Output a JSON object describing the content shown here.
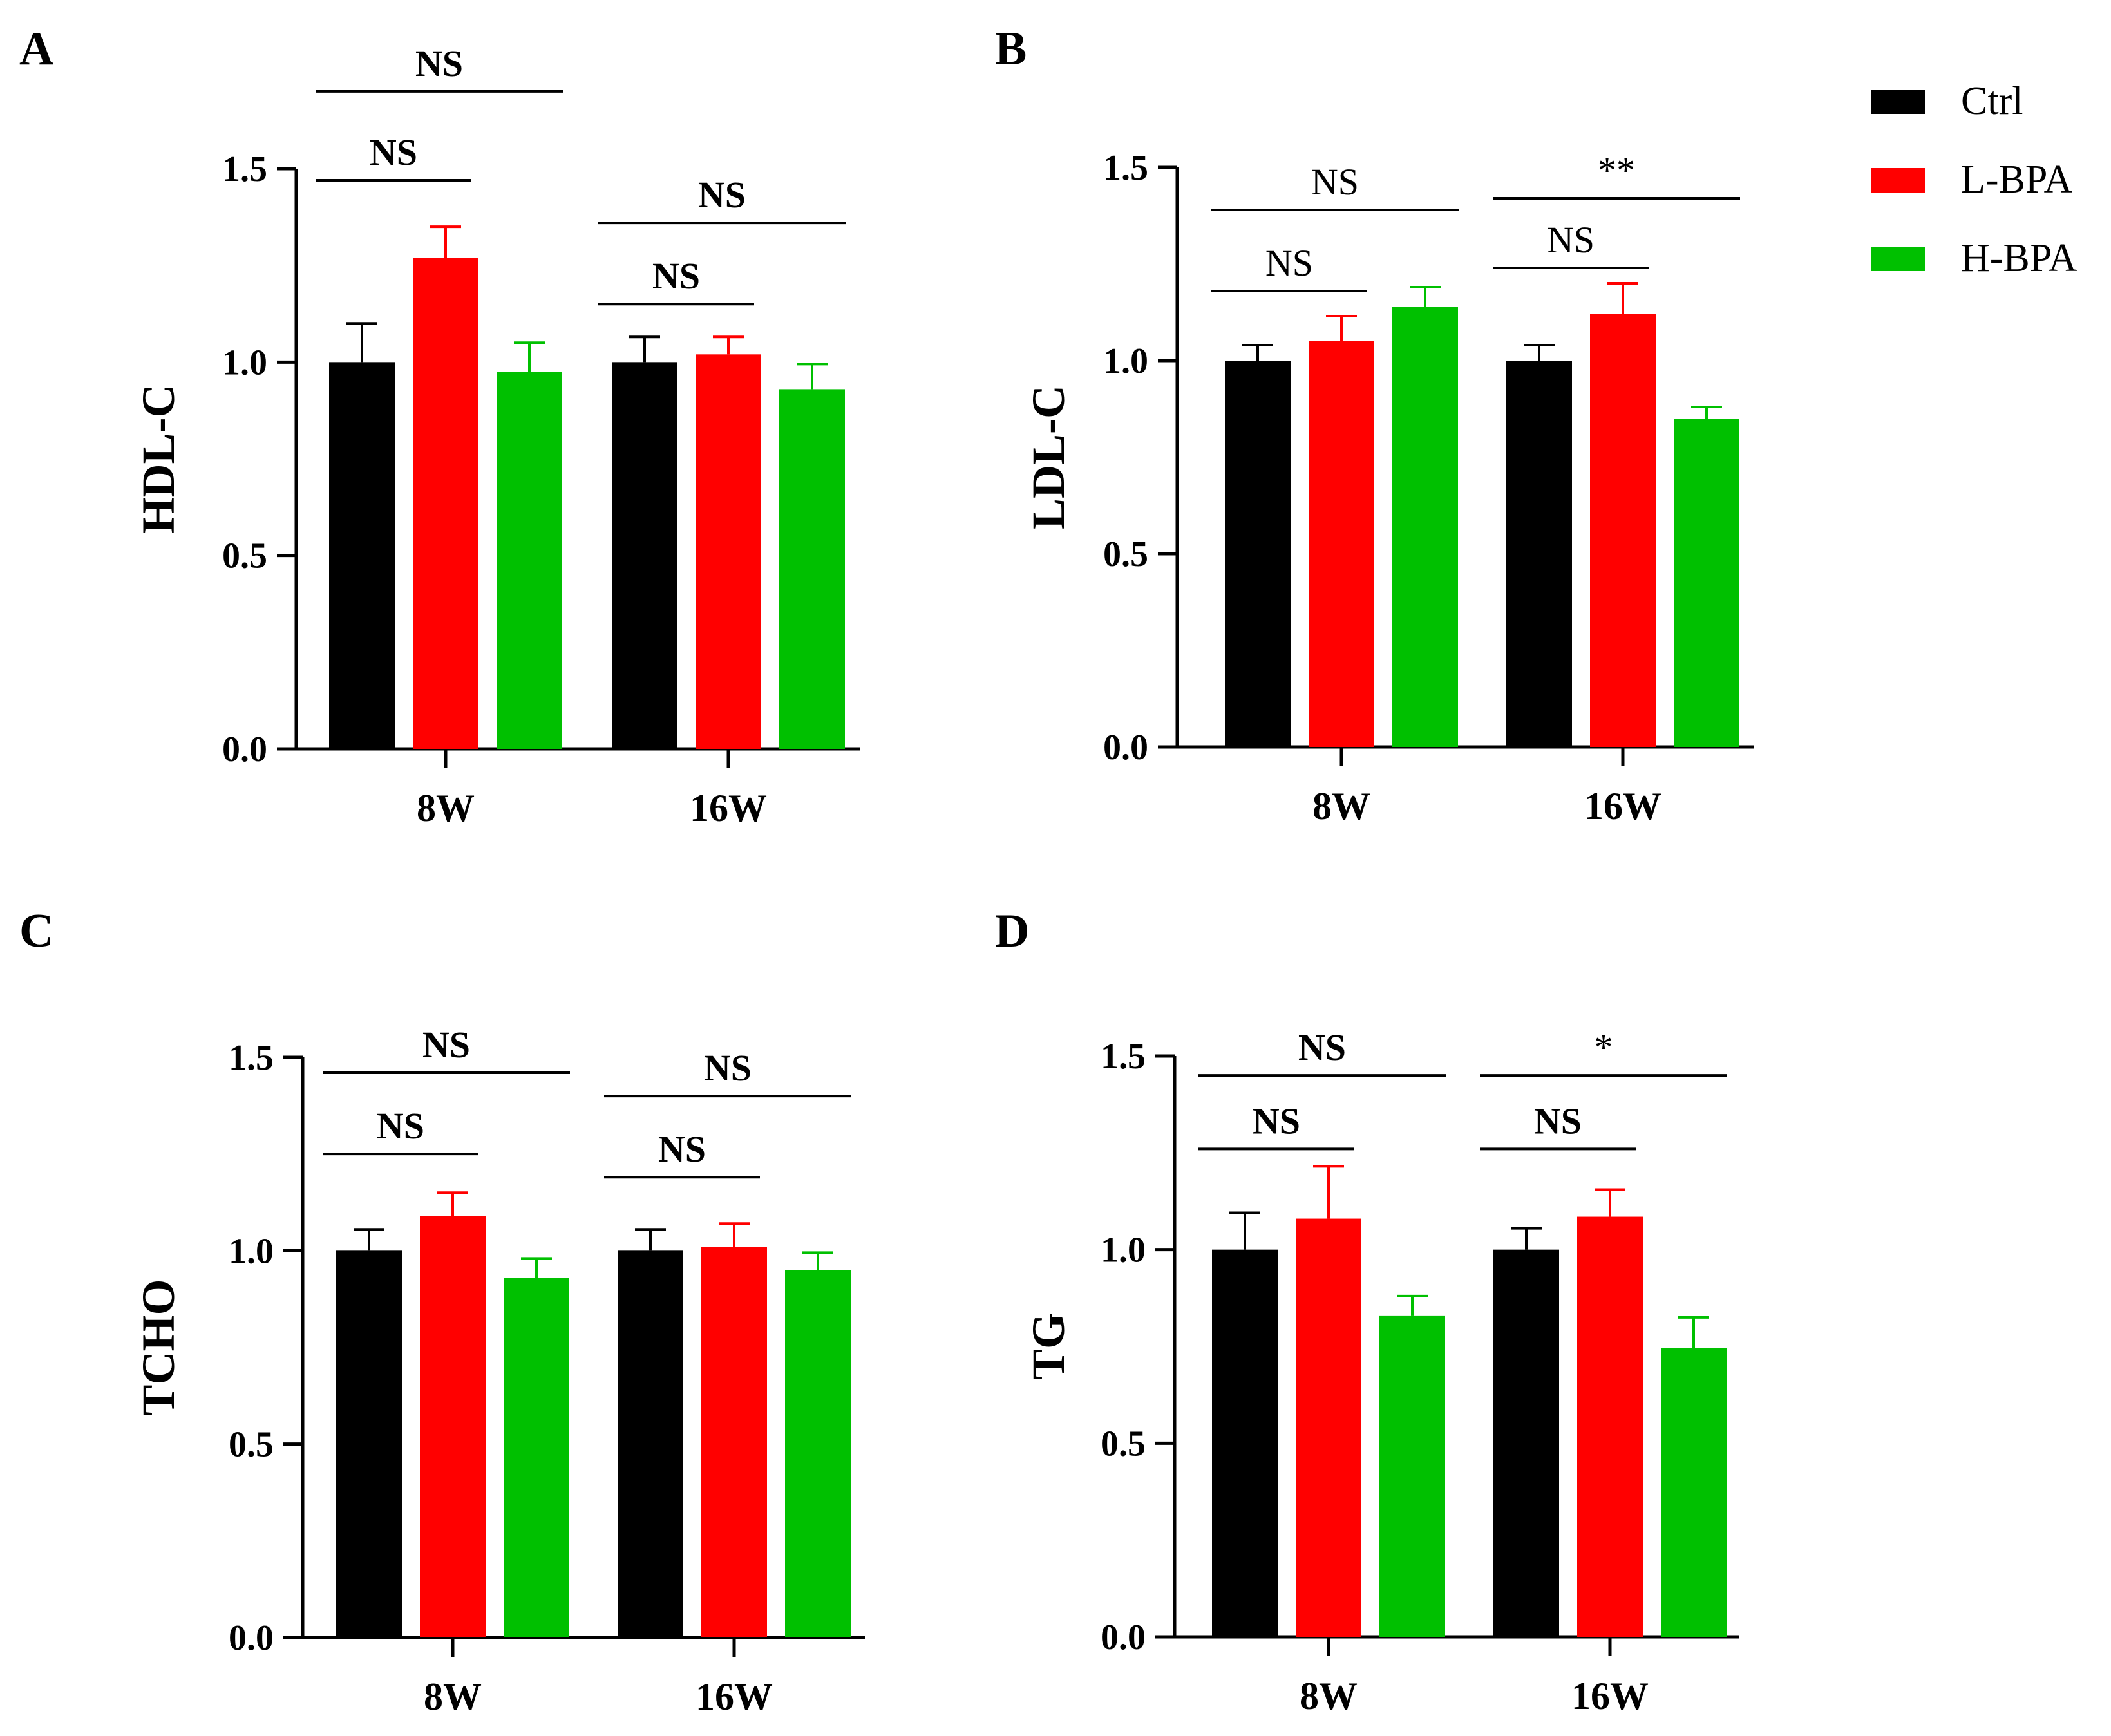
{
  "legend": [
    {
      "label": "Ctrl",
      "color": "#000000"
    },
    {
      "label": "L-BPA",
      "color": "#ff0000"
    },
    {
      "label": "H-BPA",
      "color": "#00c000"
    }
  ],
  "chart_data": [
    {
      "panel": "A",
      "type": "bar",
      "ylabel": "HDL-C",
      "ylim": [
        0,
        1.5
      ],
      "yticks": [
        "0.0",
        "0.5",
        "1.0",
        "1.5"
      ],
      "categories": [
        "8W",
        "16W"
      ],
      "series": [
        {
          "name": "Ctrl",
          "values": [
            1.0,
            1.0
          ],
          "errors": [
            0.1,
            0.065
          ]
        },
        {
          "name": "L-BPA",
          "values": [
            1.27,
            1.02
          ],
          "errors": [
            0.08,
            0.045
          ]
        },
        {
          "name": "H-BPA",
          "values": [
            0.975,
            0.93
          ],
          "errors": [
            0.075,
            0.065
          ]
        }
      ],
      "significance": [
        {
          "label": "NS",
          "group": 0,
          "from": 0,
          "to": 1,
          "level": 1.47,
          "bold": true
        },
        {
          "label": "NS",
          "group": 0,
          "from": 0,
          "to": 2,
          "level": 1.7,
          "bold": true
        },
        {
          "label": "NS",
          "group": 1,
          "from": 0,
          "to": 1,
          "level": 1.15,
          "bold": true
        },
        {
          "label": "NS",
          "group": 1,
          "from": 0,
          "to": 2,
          "level": 1.36,
          "bold": true
        }
      ]
    },
    {
      "panel": "B",
      "type": "bar",
      "ylabel": "LDL-C",
      "ylim": [
        0,
        1.5
      ],
      "yticks": [
        "0.0",
        "0.5",
        "1.0",
        "1.5"
      ],
      "categories": [
        "8W",
        "16W"
      ],
      "series": [
        {
          "name": "Ctrl",
          "values": [
            1.0,
            1.0
          ],
          "errors": [
            0.04,
            0.04
          ]
        },
        {
          "name": "L-BPA",
          "values": [
            1.05,
            1.12
          ],
          "errors": [
            0.065,
            0.08
          ]
        },
        {
          "name": "H-BPA",
          "values": [
            1.14,
            0.85
          ],
          "errors": [
            0.05,
            0.03
          ]
        }
      ],
      "significance": [
        {
          "label": "NS",
          "group": 0,
          "from": 0,
          "to": 1,
          "level": 1.18,
          "bold": false
        },
        {
          "label": "NS",
          "group": 0,
          "from": 0,
          "to": 2,
          "level": 1.39,
          "bold": false
        },
        {
          "label": "NS",
          "group": 1,
          "from": 0,
          "to": 1,
          "level": 1.24,
          "bold": false
        },
        {
          "label": "**",
          "group": 1,
          "from": 0,
          "to": 2,
          "level": 1.42,
          "bold": false
        }
      ]
    },
    {
      "panel": "C",
      "type": "bar",
      "ylabel": "TCHO",
      "ylim": [
        0,
        1.5
      ],
      "yticks": [
        "0.0",
        "0.5",
        "1.0",
        "1.5"
      ],
      "categories": [
        "8W",
        "16W"
      ],
      "series": [
        {
          "name": "Ctrl",
          "values": [
            1.0,
            1.0
          ],
          "errors": [
            0.055,
            0.055
          ]
        },
        {
          "name": "L-BPA",
          "values": [
            1.09,
            1.01
          ],
          "errors": [
            0.06,
            0.06
          ]
        },
        {
          "name": "H-BPA",
          "values": [
            0.93,
            0.95
          ],
          "errors": [
            0.05,
            0.045
          ]
        }
      ],
      "significance": [
        {
          "label": "NS",
          "group": 0,
          "from": 0,
          "to": 1,
          "level": 1.25,
          "bold": true
        },
        {
          "label": "NS",
          "group": 0,
          "from": 0,
          "to": 2,
          "level": 1.46,
          "bold": true
        },
        {
          "label": "NS",
          "group": 1,
          "from": 0,
          "to": 1,
          "level": 1.19,
          "bold": true
        },
        {
          "label": "NS",
          "group": 1,
          "from": 0,
          "to": 2,
          "level": 1.4,
          "bold": true
        }
      ]
    },
    {
      "panel": "D",
      "type": "bar",
      "ylabel": "TG",
      "ylim": [
        0,
        1.5
      ],
      "yticks": [
        "0.0",
        "0.5",
        "1.0",
        "1.5"
      ],
      "categories": [
        "8W",
        "16W"
      ],
      "series": [
        {
          "name": "Ctrl",
          "values": [
            1.0,
            1.0
          ],
          "errors": [
            0.095,
            0.055
          ]
        },
        {
          "name": "L-BPA",
          "values": [
            1.08,
            1.085
          ],
          "errors": [
            0.135,
            0.07
          ]
        },
        {
          "name": "H-BPA",
          "values": [
            0.83,
            0.745
          ],
          "errors": [
            0.05,
            0.08
          ]
        }
      ],
      "significance": [
        {
          "label": "NS",
          "group": 0,
          "from": 0,
          "to": 1,
          "level": 1.26,
          "bold": true
        },
        {
          "label": "NS",
          "group": 0,
          "from": 0,
          "to": 2,
          "level": 1.45,
          "bold": true
        },
        {
          "label": "NS",
          "group": 1,
          "from": 0,
          "to": 1,
          "level": 1.26,
          "bold": true
        },
        {
          "label": "*",
          "group": 1,
          "from": 0,
          "to": 2,
          "level": 1.45,
          "bold": false
        }
      ]
    }
  ]
}
